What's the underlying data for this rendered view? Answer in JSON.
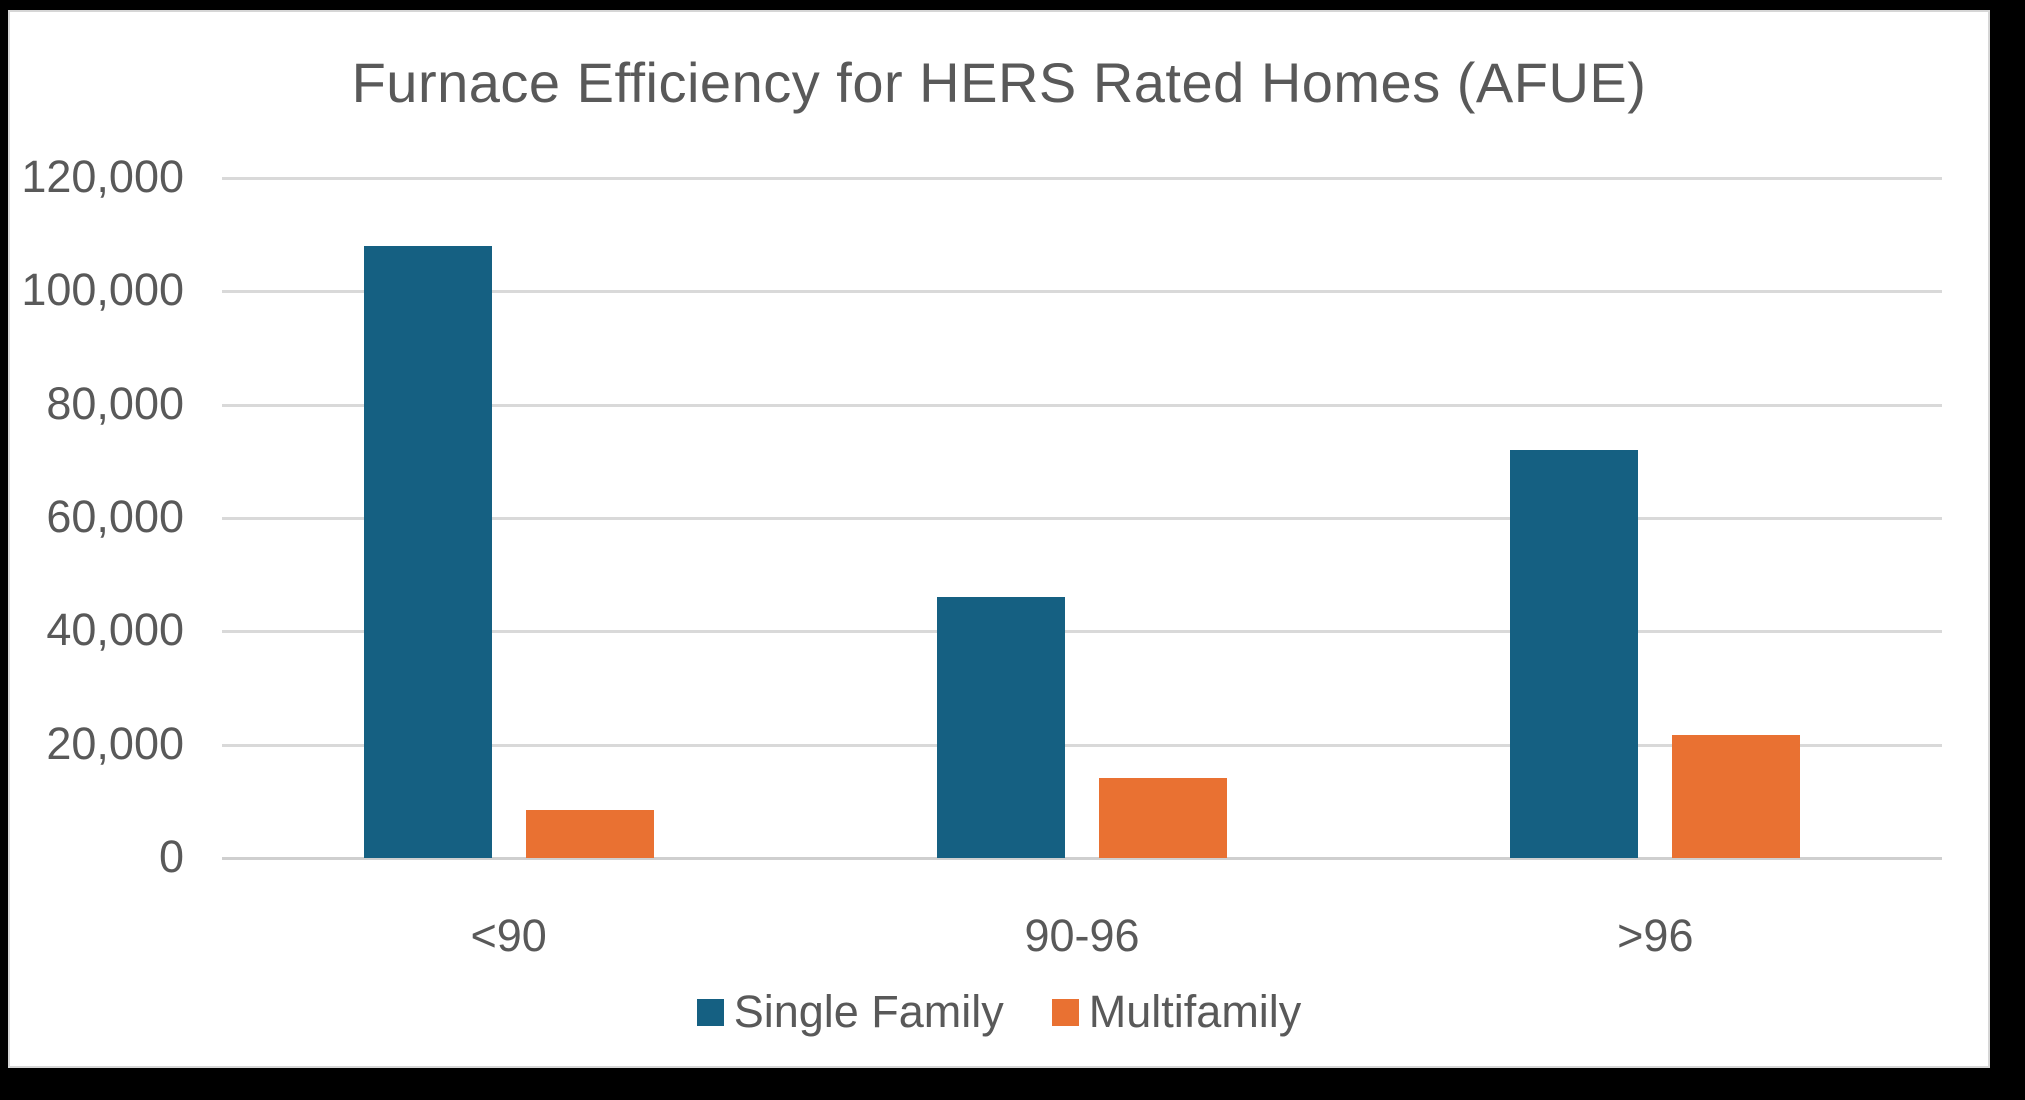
{
  "chart_data": {
    "type": "bar",
    "title": "Furnace Efficiency for HERS Rated Homes (AFUE)",
    "categories": [
      "<90",
      "90-96",
      ">96"
    ],
    "series": [
      {
        "name": "Single Family",
        "color": "#156082",
        "values": [
          108000,
          46000,
          72000
        ]
      },
      {
        "name": "Multifamily",
        "color": "#E97132",
        "values": [
          8500,
          14200,
          21700
        ]
      }
    ],
    "xlabel": "",
    "ylabel": "",
    "ylim": [
      0,
      120000
    ],
    "ytick_step": 20000,
    "ytick_format": "comma",
    "grid": "horizontal",
    "gridline_color": "#d9d9d9",
    "text_color": "#595959",
    "background_color": "#ffffff",
    "frame_color": "#000000",
    "legend_position": "bottom"
  }
}
